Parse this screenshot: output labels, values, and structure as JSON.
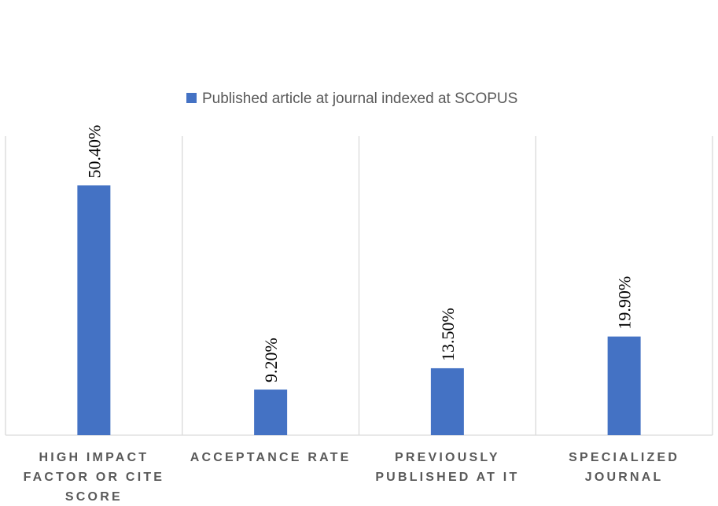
{
  "chart_data": {
    "type": "bar",
    "categories": [
      [
        "HIGH IMPACT",
        "FACTOR OR CITE",
        "SCORE"
      ],
      [
        "ACCEPTANCE RATE"
      ],
      [
        "PREVIOUSLY",
        "PUBLISHED AT IT"
      ],
      [
        "SPECIALIZED",
        "JOURNAL"
      ]
    ],
    "series": [
      {
        "name": "Published article at journal indexed at SCOPUS",
        "values": [
          50.4,
          9.2,
          13.5,
          19.9
        ],
        "labels": [
          "50.40%",
          "9.20%",
          "13.50%",
          "19.90%"
        ],
        "color": "#4472C4"
      }
    ],
    "ylim": [
      0,
      60
    ],
    "grid": "vertical category separators",
    "legend": "top-center"
  }
}
